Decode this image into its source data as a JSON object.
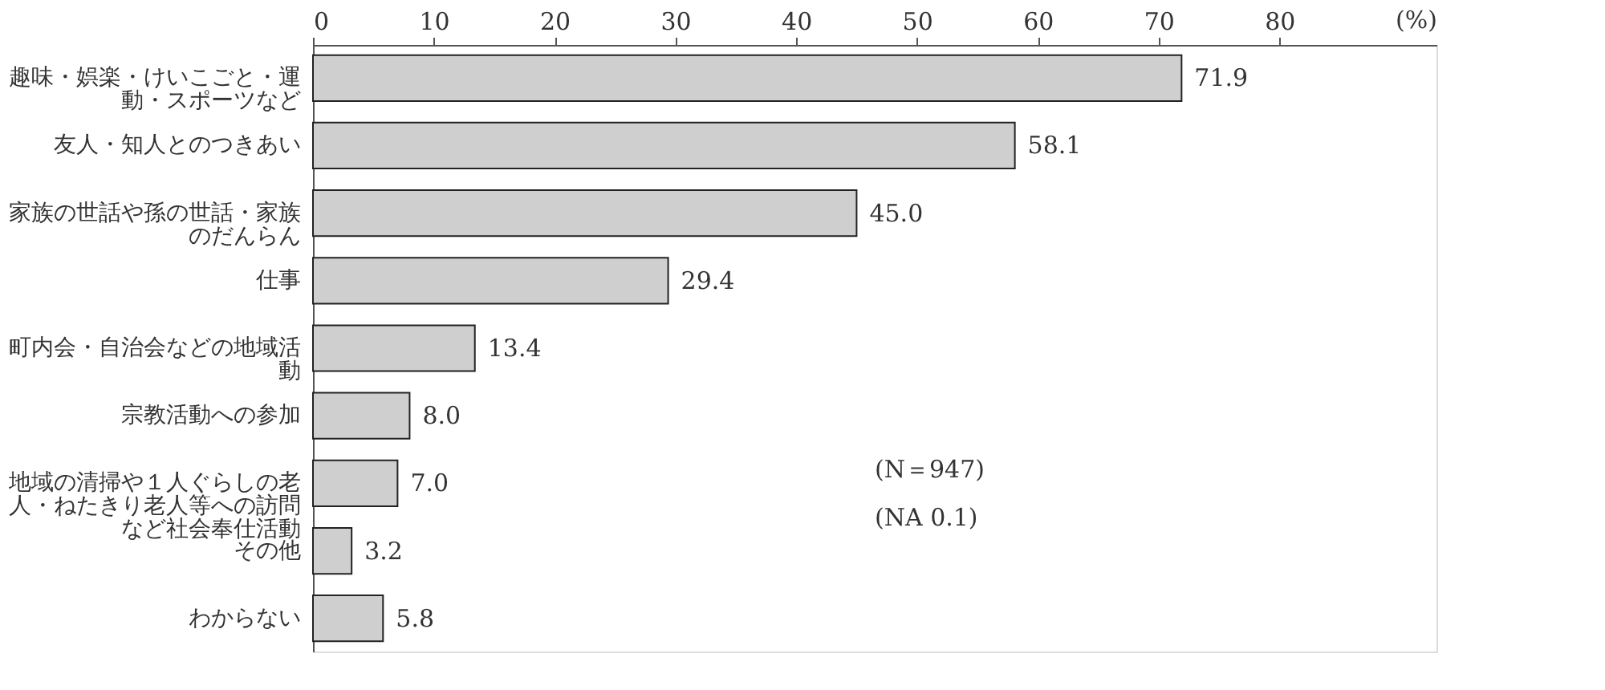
{
  "chart_data": {
    "type": "bar",
    "orientation": "horizontal",
    "xlabel": "(%)",
    "categories": [
      "趣味・娯楽・けいこごと・運動・スポーツなど",
      "友人・知人とのつきあい",
      "家族の世話や孫の世話・家族のだんらん",
      "仕事",
      "町内会・自治会などの地域活動",
      "宗教活動への参加",
      "地域の清掃や１人ぐらしの老人・ねたきり老人等への訪問など社会奉仕活動",
      "その他",
      "わからない"
    ],
    "values": [
      71.9,
      58.1,
      45.0,
      29.4,
      13.4,
      8.0,
      7.0,
      3.2,
      5.8
    ],
    "value_labels": [
      "71.9",
      "58.1",
      "45.0",
      "29.4",
      "13.4",
      "8.0",
      "7.0",
      "3.2",
      "5.8"
    ],
    "color": "#cfcfcf",
    "xlim": [
      0,
      93
    ],
    "xticks": [
      0,
      10,
      20,
      30,
      40,
      50,
      60,
      70,
      80
    ],
    "grid": false,
    "annotations": [
      "(N＝947)",
      "(NA 0.1)"
    ]
  }
}
